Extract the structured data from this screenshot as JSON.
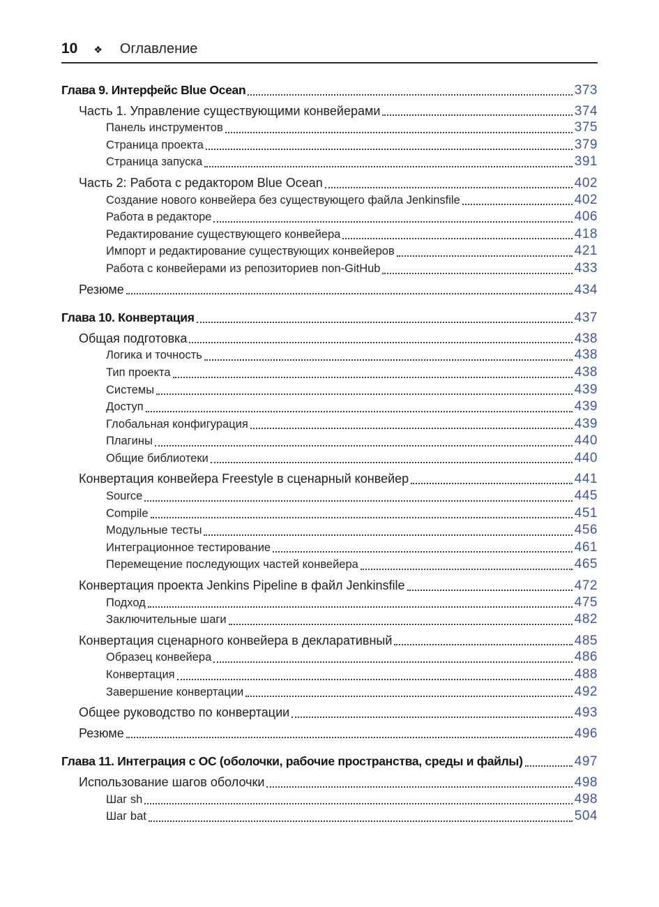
{
  "header": {
    "page_number": "10",
    "separator_icon": "❖",
    "title": "Оглавление"
  },
  "colors": {
    "page_number_accent": "#3f55a0",
    "rule": "#2b2b2b",
    "body_text": "#1f1f1f"
  },
  "toc": [
    {
      "level": 0,
      "label": "Глава 9. Интерфейс Blue Ocean",
      "page": "373"
    },
    {
      "level": 1,
      "label": "Часть 1. Управление существующими конвейерами",
      "page": "374"
    },
    {
      "level": 2,
      "label": "Панель инструментов",
      "page": "375"
    },
    {
      "level": 2,
      "label": "Страница проекта",
      "page": "379"
    },
    {
      "level": 2,
      "label": "Страница запуска",
      "page": "391"
    },
    {
      "level": 1,
      "label": "Часть 2: Работа с редактором Blue Ocean",
      "page": "402"
    },
    {
      "level": 2,
      "label": "Создание нового конвейера без существующего файла Jenkinsfile",
      "page": "402"
    },
    {
      "level": 2,
      "label": "Работа в редакторе",
      "page": "406"
    },
    {
      "level": 2,
      "label": "Редактирование существующего конвейера",
      "page": "418"
    },
    {
      "level": 2,
      "label": "Импорт и редактирование существующих конвейеров",
      "page": "421"
    },
    {
      "level": 2,
      "label": "Работа с конвейерами из репозиториев non-GitHub",
      "page": "433"
    },
    {
      "level": 1,
      "label": "Резюме",
      "page": "434"
    },
    {
      "level": 0,
      "label": "Глава 10. Конвертация",
      "page": "437"
    },
    {
      "level": 1,
      "label": "Общая подготовка",
      "page": "438"
    },
    {
      "level": 2,
      "label": "Логика и точность",
      "page": "438"
    },
    {
      "level": 2,
      "label": "Тип проекта",
      "page": "438"
    },
    {
      "level": 2,
      "label": "Системы",
      "page": "439"
    },
    {
      "level": 2,
      "label": "Доступ",
      "page": "439"
    },
    {
      "level": 2,
      "label": "Глобальная конфигурация",
      "page": "439"
    },
    {
      "level": 2,
      "label": "Плагины",
      "page": "440"
    },
    {
      "level": 2,
      "label": "Общие библиотеки",
      "page": "440"
    },
    {
      "level": 1,
      "label": "Конвертация конвейера Freestyle в сценарный конвейер",
      "page": "441"
    },
    {
      "level": 2,
      "label": "Source",
      "page": "445"
    },
    {
      "level": 2,
      "label": "Compile",
      "page": "451"
    },
    {
      "level": 2,
      "label": "Модульные тесты",
      "page": "456"
    },
    {
      "level": 2,
      "label": "Интеграционное тестирование",
      "page": "461"
    },
    {
      "level": 2,
      "label": "Перемещение последующих частей конвейера",
      "page": "465"
    },
    {
      "level": 1,
      "label": "Конвертация проекта Jenkins Pipeline в файл Jenkinsfile",
      "page": "472"
    },
    {
      "level": 2,
      "label": "Подход",
      "page": "475"
    },
    {
      "level": 2,
      "label": "Заключительные шаги",
      "page": "482"
    },
    {
      "level": 1,
      "label": "Конвертация сценарного конвейера в декларативный",
      "page": "485"
    },
    {
      "level": 2,
      "label": "Образец конвейера",
      "page": "486"
    },
    {
      "level": 2,
      "label": "Конвертация",
      "page": "488"
    },
    {
      "level": 2,
      "label": "Завершение конвертации",
      "page": "492"
    },
    {
      "level": 1,
      "label": "Общее руководство по конвертации",
      "page": "493"
    },
    {
      "level": 1,
      "label": "Резюме",
      "page": "496"
    },
    {
      "level": 0,
      "label": "Глава 11. Интеграция с ОС (оболочки, рабочие пространства, среды и файлы)",
      "page": "497"
    },
    {
      "level": 1,
      "label": "Использование шагов оболочки",
      "page": "498"
    },
    {
      "level": 2,
      "label": "Шаг sh",
      "page": "498"
    },
    {
      "level": 2,
      "label": "Шаг bat",
      "page": "504"
    }
  ]
}
